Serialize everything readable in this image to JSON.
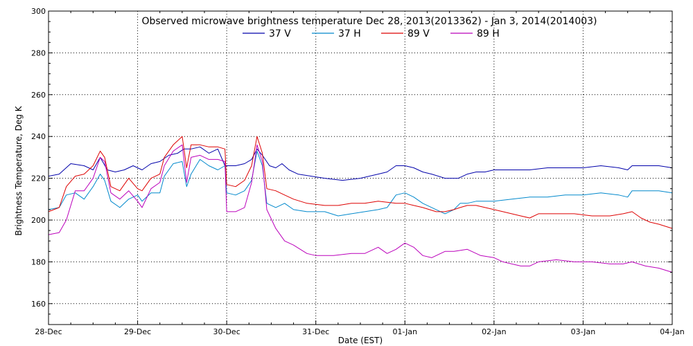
{
  "chart_data": {
    "type": "line",
    "title": "Observed microwave brightness temperature Dec 28, 2013(2013362) - Jan  3, 2014(2014003)",
    "xlabel": "Date (EST)",
    "ylabel": "Brightness Temperature, Deg K",
    "xlim": [
      0,
      7
    ],
    "ylim": [
      150,
      300
    ],
    "x_ticks": [
      {
        "x": 0,
        "label": "28-Dec"
      },
      {
        "x": 1,
        "label": "29-Dec"
      },
      {
        "x": 2,
        "label": "30-Dec"
      },
      {
        "x": 3,
        "label": "31-Dec"
      },
      {
        "x": 4,
        "label": "01-Jan"
      },
      {
        "x": 5,
        "label": "02-Jan"
      },
      {
        "x": 6,
        "label": "03-Jan"
      },
      {
        "x": 7,
        "label": "04-Jan"
      }
    ],
    "y_ticks": [
      160,
      180,
      200,
      220,
      240,
      260,
      280,
      300
    ],
    "grid": true,
    "legend_position": "top-center",
    "series": [
      {
        "name": "37 V",
        "color": "#0000aa",
        "points": [
          [
            0,
            221
          ],
          [
            0.12,
            222
          ],
          [
            0.25,
            227
          ],
          [
            0.4,
            226
          ],
          [
            0.5,
            224
          ],
          [
            0.58,
            230
          ],
          [
            0.66,
            224
          ],
          [
            0.75,
            223
          ],
          [
            0.85,
            224
          ],
          [
            0.95,
            226
          ],
          [
            1.05,
            224
          ],
          [
            1.15,
            227
          ],
          [
            1.25,
            228
          ],
          [
            1.35,
            231
          ],
          [
            1.45,
            232
          ],
          [
            1.52,
            234
          ],
          [
            1.6,
            234
          ],
          [
            1.7,
            235
          ],
          [
            1.8,
            232
          ],
          [
            1.9,
            234
          ],
          [
            1.98,
            226
          ],
          [
            2.1,
            226
          ],
          [
            2.2,
            227
          ],
          [
            2.28,
            229
          ],
          [
            2.34,
            234
          ],
          [
            2.4,
            231
          ],
          [
            2.48,
            226
          ],
          [
            2.55,
            225
          ],
          [
            2.62,
            227
          ],
          [
            2.7,
            224
          ],
          [
            2.8,
            222
          ],
          [
            2.95,
            221
          ],
          [
            3.1,
            220
          ],
          [
            3.3,
            219
          ],
          [
            3.5,
            220
          ],
          [
            3.7,
            222
          ],
          [
            3.8,
            223
          ],
          [
            3.9,
            226
          ],
          [
            4.0,
            226
          ],
          [
            4.1,
            225
          ],
          [
            4.2,
            223
          ],
          [
            4.3,
            222
          ],
          [
            4.45,
            220
          ],
          [
            4.6,
            220
          ],
          [
            4.7,
            222
          ],
          [
            4.8,
            223
          ],
          [
            4.9,
            223
          ],
          [
            5.0,
            224
          ],
          [
            5.2,
            224
          ],
          [
            5.4,
            224
          ],
          [
            5.6,
            225
          ],
          [
            5.8,
            225
          ],
          [
            6.0,
            225
          ],
          [
            6.2,
            226
          ],
          [
            6.4,
            225
          ],
          [
            6.5,
            224
          ],
          [
            6.55,
            226
          ],
          [
            6.7,
            226
          ],
          [
            6.85,
            226
          ],
          [
            7.0,
            225
          ]
        ]
      },
      {
        "name": "37 H",
        "color": "#0088cc",
        "points": [
          [
            0,
            205
          ],
          [
            0.12,
            206
          ],
          [
            0.2,
            212
          ],
          [
            0.3,
            213
          ],
          [
            0.4,
            210
          ],
          [
            0.5,
            216
          ],
          [
            0.58,
            222
          ],
          [
            0.63,
            219
          ],
          [
            0.7,
            209
          ],
          [
            0.8,
            206
          ],
          [
            0.9,
            210
          ],
          [
            1.0,
            212
          ],
          [
            1.05,
            209
          ],
          [
            1.15,
            213
          ],
          [
            1.25,
            213
          ],
          [
            1.3,
            221
          ],
          [
            1.4,
            227
          ],
          [
            1.5,
            228
          ],
          [
            1.55,
            216
          ],
          [
            1.6,
            222
          ],
          [
            1.7,
            229
          ],
          [
            1.8,
            226
          ],
          [
            1.9,
            224
          ],
          [
            1.98,
            226
          ],
          [
            2.0,
            213
          ],
          [
            2.1,
            212
          ],
          [
            2.2,
            214
          ],
          [
            2.28,
            219
          ],
          [
            2.34,
            233
          ],
          [
            2.4,
            226
          ],
          [
            2.45,
            208
          ],
          [
            2.55,
            206
          ],
          [
            2.65,
            208
          ],
          [
            2.75,
            205
          ],
          [
            2.9,
            204
          ],
          [
            3.1,
            204
          ],
          [
            3.25,
            202
          ],
          [
            3.4,
            203
          ],
          [
            3.55,
            204
          ],
          [
            3.7,
            205
          ],
          [
            3.8,
            206
          ],
          [
            3.9,
            212
          ],
          [
            4.0,
            213
          ],
          [
            4.1,
            211
          ],
          [
            4.2,
            208
          ],
          [
            4.35,
            205
          ],
          [
            4.45,
            203
          ],
          [
            4.55,
            205
          ],
          [
            4.62,
            208
          ],
          [
            4.7,
            208
          ],
          [
            4.8,
            209
          ],
          [
            4.9,
            209
          ],
          [
            5.0,
            209
          ],
          [
            5.2,
            210
          ],
          [
            5.4,
            211
          ],
          [
            5.6,
            211
          ],
          [
            5.8,
            212
          ],
          [
            6.0,
            212
          ],
          [
            6.2,
            213
          ],
          [
            6.4,
            212
          ],
          [
            6.5,
            211
          ],
          [
            6.55,
            214
          ],
          [
            6.7,
            214
          ],
          [
            6.85,
            214
          ],
          [
            7.0,
            213
          ]
        ]
      },
      {
        "name": "89 V",
        "color": "#dd0000",
        "points": [
          [
            0,
            204
          ],
          [
            0.12,
            206
          ],
          [
            0.2,
            216
          ],
          [
            0.3,
            221
          ],
          [
            0.4,
            222
          ],
          [
            0.5,
            226
          ],
          [
            0.58,
            233
          ],
          [
            0.63,
            230
          ],
          [
            0.7,
            216
          ],
          [
            0.8,
            214
          ],
          [
            0.9,
            220
          ],
          [
            1.0,
            215
          ],
          [
            1.05,
            214
          ],
          [
            1.15,
            220
          ],
          [
            1.25,
            222
          ],
          [
            1.3,
            230
          ],
          [
            1.4,
            236
          ],
          [
            1.5,
            240
          ],
          [
            1.55,
            225
          ],
          [
            1.6,
            236
          ],
          [
            1.7,
            236
          ],
          [
            1.8,
            235
          ],
          [
            1.9,
            235
          ],
          [
            1.98,
            234
          ],
          [
            2.0,
            217
          ],
          [
            2.1,
            216
          ],
          [
            2.2,
            219
          ],
          [
            2.28,
            226
          ],
          [
            2.34,
            240
          ],
          [
            2.4,
            232
          ],
          [
            2.45,
            215
          ],
          [
            2.55,
            214
          ],
          [
            2.65,
            212
          ],
          [
            2.75,
            210
          ],
          [
            2.9,
            208
          ],
          [
            3.1,
            207
          ],
          [
            3.25,
            207
          ],
          [
            3.4,
            208
          ],
          [
            3.55,
            208
          ],
          [
            3.7,
            209
          ],
          [
            3.9,
            208
          ],
          [
            4.0,
            208
          ],
          [
            4.1,
            207
          ],
          [
            4.2,
            206
          ],
          [
            4.35,
            204
          ],
          [
            4.45,
            204
          ],
          [
            4.55,
            205
          ],
          [
            4.62,
            206
          ],
          [
            4.7,
            207
          ],
          [
            4.8,
            207
          ],
          [
            4.9,
            206
          ],
          [
            5.0,
            205
          ],
          [
            5.1,
            204
          ],
          [
            5.3,
            202
          ],
          [
            5.4,
            201
          ],
          [
            5.5,
            203
          ],
          [
            5.7,
            203
          ],
          [
            5.9,
            203
          ],
          [
            6.1,
            202
          ],
          [
            6.3,
            202
          ],
          [
            6.45,
            203
          ],
          [
            6.55,
            204
          ],
          [
            6.65,
            201
          ],
          [
            6.75,
            199
          ],
          [
            6.85,
            198
          ],
          [
            7.0,
            196
          ]
        ]
      },
      {
        "name": "89 H",
        "color": "#bb00bb",
        "points": [
          [
            0,
            193
          ],
          [
            0.12,
            194
          ],
          [
            0.2,
            200
          ],
          [
            0.3,
            214
          ],
          [
            0.4,
            214
          ],
          [
            0.5,
            220
          ],
          [
            0.58,
            230
          ],
          [
            0.63,
            228
          ],
          [
            0.7,
            213
          ],
          [
            0.8,
            210
          ],
          [
            0.9,
            214
          ],
          [
            1.0,
            209
          ],
          [
            1.05,
            206
          ],
          [
            1.15,
            215
          ],
          [
            1.25,
            218
          ],
          [
            1.3,
            226
          ],
          [
            1.4,
            233
          ],
          [
            1.5,
            236
          ],
          [
            1.55,
            218
          ],
          [
            1.6,
            230
          ],
          [
            1.7,
            231
          ],
          [
            1.8,
            229
          ],
          [
            1.9,
            229
          ],
          [
            1.98,
            228
          ],
          [
            2.0,
            204
          ],
          [
            2.1,
            204
          ],
          [
            2.2,
            206
          ],
          [
            2.28,
            218
          ],
          [
            2.34,
            236
          ],
          [
            2.4,
            228
          ],
          [
            2.45,
            205
          ],
          [
            2.55,
            196
          ],
          [
            2.65,
            190
          ],
          [
            2.75,
            188
          ],
          [
            2.9,
            184
          ],
          [
            3.0,
            183
          ],
          [
            3.2,
            183
          ],
          [
            3.4,
            184
          ],
          [
            3.55,
            184
          ],
          [
            3.65,
            186
          ],
          [
            3.7,
            187
          ],
          [
            3.8,
            184
          ],
          [
            3.9,
            186
          ],
          [
            4.0,
            189
          ],
          [
            4.1,
            187
          ],
          [
            4.2,
            183
          ],
          [
            4.3,
            182
          ],
          [
            4.45,
            185
          ],
          [
            4.55,
            185
          ],
          [
            4.7,
            186
          ],
          [
            4.85,
            183
          ],
          [
            5.0,
            182
          ],
          [
            5.1,
            180
          ],
          [
            5.3,
            178
          ],
          [
            5.4,
            178
          ],
          [
            5.5,
            180
          ],
          [
            5.7,
            181
          ],
          [
            5.9,
            180
          ],
          [
            6.1,
            180
          ],
          [
            6.3,
            179
          ],
          [
            6.45,
            179
          ],
          [
            6.55,
            180
          ],
          [
            6.7,
            178
          ],
          [
            6.85,
            177
          ],
          [
            7.0,
            175
          ]
        ]
      }
    ]
  }
}
